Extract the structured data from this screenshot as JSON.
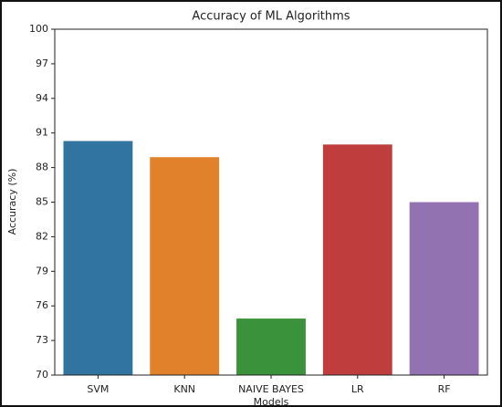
{
  "chart_data": {
    "type": "bar",
    "title": "Accuracy of ML Algorithms",
    "x_label": "Models",
    "y_label": "Accuracy (%)",
    "categories": [
      "SVM",
      "KNN",
      "NAIVE BAYES",
      "LR",
      "RF"
    ],
    "values": [
      90.3,
      88.9,
      74.9,
      90.0,
      85.0
    ],
    "colors": [
      "#3274a1",
      "#e1812c",
      "#3a923a",
      "#c03d3e",
      "#9372b2"
    ],
    "ylim": [
      70,
      100
    ],
    "yticks": [
      70,
      73,
      76,
      79,
      82,
      85,
      88,
      91,
      94,
      97,
      100
    ],
    "grid": false
  }
}
